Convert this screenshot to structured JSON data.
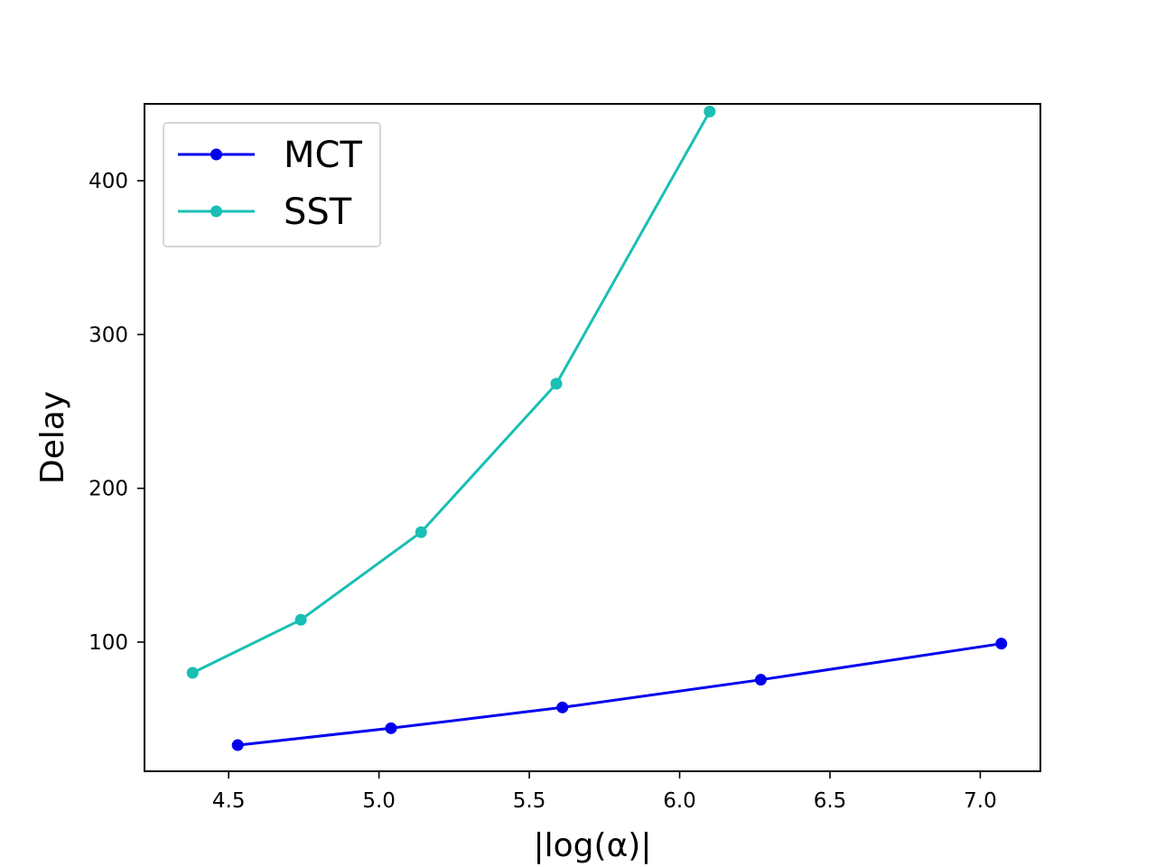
{
  "chart_data": {
    "type": "line",
    "title": "",
    "xlabel": "|log(α)|",
    "ylabel": "Delay",
    "xlim": [
      4.22,
      7.2
    ],
    "ylim": [
      16,
      450
    ],
    "grid": false,
    "legend_position": "top-left",
    "x_ticks": [
      "4.5",
      "5.0",
      "5.5",
      "6.0",
      "6.5",
      "7.0"
    ],
    "y_ticks": [
      "100",
      "200",
      "300",
      "400"
    ],
    "series": [
      {
        "name": "MCT",
        "color": "#0000ee",
        "x": [
          4.53,
          5.04,
          5.61,
          6.27,
          7.07
        ],
        "y": [
          33,
          44,
          57.5,
          75.5,
          99
        ]
      },
      {
        "name": "SST",
        "color": "#19bfb4",
        "x": [
          4.38,
          4.74,
          5.14,
          5.59,
          6.1
        ],
        "y": [
          80,
          114.5,
          171.5,
          268,
          445
        ]
      }
    ]
  }
}
